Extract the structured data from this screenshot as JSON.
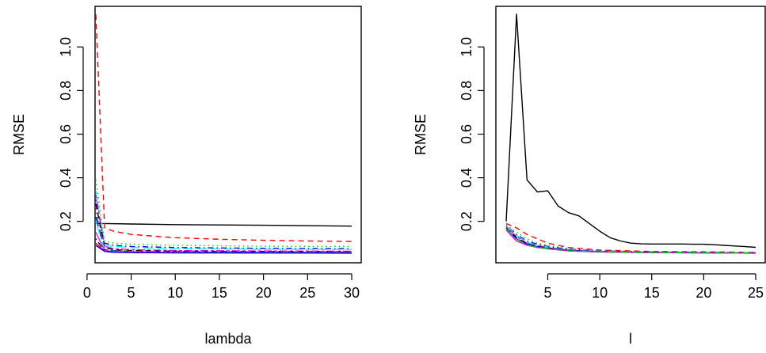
{
  "chart_data": [
    {
      "type": "line",
      "xlabel": "lambda",
      "ylabel": "RMSE",
      "xlim": [
        1,
        30
      ],
      "ylim": [
        0.05,
        1.15
      ],
      "xticks": [
        0,
        5,
        10,
        15,
        20,
        25,
        30
      ],
      "yticks": [
        0.2,
        0.4,
        0.6,
        0.8,
        1.0
      ],
      "xtick_labels": [
        "0",
        "5",
        "10",
        "15",
        "20",
        "25",
        "30"
      ],
      "ytick_labels": [
        "0.2",
        "0.4",
        "0.6",
        "0.8",
        "1.0"
      ],
      "grid": false,
      "series": [
        {
          "color": "#000000",
          "dash": "solid",
          "x": [
            1,
            2,
            5,
            10,
            20,
            30
          ],
          "y": [
            0.19,
            0.19,
            0.188,
            0.185,
            0.182,
            0.178
          ]
        },
        {
          "color": "#ff0000",
          "dash": "dashed",
          "x": [
            1,
            2,
            3,
            5,
            10,
            15,
            20,
            25,
            30
          ],
          "y": [
            1.15,
            0.17,
            0.155,
            0.14,
            0.125,
            0.118,
            0.113,
            0.11,
            0.108
          ]
        },
        {
          "color": "#00cd00",
          "dash": "dotted",
          "x": [
            1,
            2,
            3,
            5,
            10,
            20,
            30
          ],
          "y": [
            0.39,
            0.11,
            0.1,
            0.095,
            0.09,
            0.086,
            0.085
          ]
        },
        {
          "color": "#0000ff",
          "dash": "dotdash",
          "x": [
            1,
            2,
            3,
            5,
            10,
            20,
            30
          ],
          "y": [
            0.3,
            0.1,
            0.09,
            0.085,
            0.08,
            0.076,
            0.075
          ]
        },
        {
          "color": "#00ffff",
          "dash": "longdash",
          "x": [
            1,
            2,
            3,
            5,
            10,
            20,
            30
          ],
          "y": [
            0.34,
            0.09,
            0.085,
            0.08,
            0.075,
            0.072,
            0.071
          ]
        },
        {
          "color": "#ff00ff",
          "dash": "twodash",
          "x": [
            1,
            2,
            3,
            5,
            10,
            20,
            30
          ],
          "y": [
            0.32,
            0.085,
            0.075,
            0.07,
            0.066,
            0.064,
            0.063
          ]
        },
        {
          "color": "#000000",
          "dash": "dashed",
          "x": [
            1,
            2,
            3,
            5,
            10,
            20,
            30
          ],
          "y": [
            0.28,
            0.08,
            0.07,
            0.066,
            0.063,
            0.062,
            0.061
          ]
        },
        {
          "color": "#ff0000",
          "dash": "dotted",
          "x": [
            1,
            2,
            3,
            5,
            10,
            20,
            30
          ],
          "y": [
            0.26,
            0.075,
            0.068,
            0.064,
            0.062,
            0.061,
            0.06
          ]
        },
        {
          "color": "#00cd00",
          "dash": "dotdash",
          "x": [
            1,
            2,
            3,
            5,
            10,
            20,
            30
          ],
          "y": [
            0.24,
            0.072,
            0.066,
            0.062,
            0.06,
            0.059,
            0.059
          ]
        },
        {
          "color": "#0000ff",
          "dash": "longdash",
          "x": [
            1,
            2,
            3,
            5,
            10,
            20,
            30
          ],
          "y": [
            0.22,
            0.07,
            0.064,
            0.061,
            0.059,
            0.058,
            0.058
          ]
        },
        {
          "color": "#00ffff",
          "dash": "twodash",
          "x": [
            1,
            2,
            3,
            5,
            10,
            20,
            30
          ],
          "y": [
            0.2,
            0.068,
            0.062,
            0.06,
            0.058,
            0.057,
            0.057
          ]
        },
        {
          "color": "#ff00ff",
          "dash": "solid",
          "x": [
            1,
            2,
            3,
            5,
            10,
            20,
            30
          ],
          "y": [
            0.15,
            0.066,
            0.061,
            0.059,
            0.057,
            0.056,
            0.056
          ]
        },
        {
          "color": "#000000",
          "dash": "dotdash",
          "x": [
            1,
            2,
            3,
            5,
            10,
            20,
            30
          ],
          "y": [
            0.12,
            0.064,
            0.06,
            0.058,
            0.056,
            0.055,
            0.055
          ]
        },
        {
          "color": "#ff0000",
          "dash": "longdash",
          "x": [
            1,
            2,
            3,
            5,
            10,
            20,
            30
          ],
          "y": [
            0.1,
            0.063,
            0.059,
            0.057,
            0.056,
            0.055,
            0.055
          ]
        },
        {
          "color": "#0000ff",
          "dash": "solid",
          "x": [
            1,
            2,
            3,
            5,
            10,
            20,
            30
          ],
          "y": [
            0.09,
            0.062,
            0.058,
            0.057,
            0.055,
            0.055,
            0.054
          ]
        }
      ]
    },
    {
      "type": "line",
      "xlabel": "l",
      "ylabel": "RMSE",
      "xlim": [
        1,
        25
      ],
      "ylim": [
        0.05,
        1.15
      ],
      "xticks": [
        5,
        10,
        15,
        20,
        25
      ],
      "yticks": [
        0.2,
        0.4,
        0.6,
        0.8,
        1.0
      ],
      "xtick_labels": [
        "5",
        "10",
        "15",
        "20",
        "25"
      ],
      "ytick_labels": [
        "0.2",
        "0.4",
        "0.6",
        "0.8",
        "1.0"
      ],
      "grid": false,
      "series": [
        {
          "color": "#000000",
          "dash": "solid",
          "x": [
            1,
            2,
            3,
            4,
            5,
            6,
            7,
            8,
            9,
            10,
            11,
            12,
            13,
            14,
            15,
            16,
            17,
            18,
            19,
            20,
            21,
            22,
            23,
            24,
            25
          ],
          "y": [
            0.2,
            1.15,
            0.39,
            0.335,
            0.34,
            0.27,
            0.24,
            0.225,
            0.19,
            0.155,
            0.125,
            0.11,
            0.1,
            0.097,
            0.096,
            0.096,
            0.096,
            0.096,
            0.095,
            0.095,
            0.093,
            0.09,
            0.087,
            0.084,
            0.081
          ]
        },
        {
          "color": "#ff0000",
          "dash": "dashed",
          "x": [
            1,
            2,
            3,
            4,
            5,
            7,
            10,
            15,
            20,
            25
          ],
          "y": [
            0.19,
            0.17,
            0.14,
            0.12,
            0.1,
            0.08,
            0.068,
            0.062,
            0.06,
            0.058
          ]
        },
        {
          "color": "#00cd00",
          "dash": "dotted",
          "x": [
            1,
            2,
            3,
            4,
            5,
            7,
            10,
            15,
            20,
            25
          ],
          "y": [
            0.185,
            0.15,
            0.12,
            0.1,
            0.09,
            0.075,
            0.065,
            0.06,
            0.058,
            0.057
          ]
        },
        {
          "color": "#0000ff",
          "dash": "dotdash",
          "x": [
            1,
            2,
            3,
            4,
            5,
            7,
            10,
            15,
            20,
            25
          ],
          "y": [
            0.18,
            0.14,
            0.11,
            0.095,
            0.085,
            0.072,
            0.064,
            0.06,
            0.058,
            0.056
          ]
        },
        {
          "color": "#00ffff",
          "dash": "longdash",
          "x": [
            1,
            2,
            3,
            4,
            5,
            7,
            10,
            15,
            20,
            25
          ],
          "y": [
            0.178,
            0.135,
            0.105,
            0.09,
            0.082,
            0.07,
            0.063,
            0.059,
            0.057,
            0.056
          ]
        },
        {
          "color": "#ff00ff",
          "dash": "twodash",
          "x": [
            1,
            2,
            3,
            4,
            5,
            7,
            10,
            15,
            20,
            25
          ],
          "y": [
            0.175,
            0.13,
            0.1,
            0.088,
            0.08,
            0.068,
            0.062,
            0.058,
            0.056,
            0.055
          ]
        },
        {
          "color": "#000000",
          "dash": "dashed",
          "x": [
            1,
            2,
            3,
            4,
            5,
            7,
            10,
            15,
            20,
            25
          ],
          "y": [
            0.17,
            0.125,
            0.098,
            0.085,
            0.078,
            0.067,
            0.061,
            0.058,
            0.056,
            0.055
          ]
        },
        {
          "color": "#0000ff",
          "dash": "solid",
          "x": [
            1,
            2,
            3,
            4,
            5,
            7,
            10,
            15,
            20,
            25
          ],
          "y": [
            0.165,
            0.12,
            0.095,
            0.083,
            0.076,
            0.066,
            0.06,
            0.057,
            0.055,
            0.054
          ]
        },
        {
          "color": "#ff00ff",
          "dash": "solid",
          "x": [
            1,
            2,
            3,
            4,
            5,
            7,
            10,
            15,
            20,
            25
          ],
          "y": [
            0.16,
            0.11,
            0.09,
            0.08,
            0.074,
            0.064,
            0.059,
            0.056,
            0.055,
            0.054
          ]
        },
        {
          "color": "#00cd00",
          "dash": "longdash",
          "x": [
            1,
            2,
            3,
            4,
            5,
            7,
            10,
            15,
            20,
            25
          ],
          "y": [
            0.168,
            0.118,
            0.092,
            0.081,
            0.075,
            0.065,
            0.06,
            0.057,
            0.055,
            0.054
          ]
        }
      ]
    }
  ]
}
